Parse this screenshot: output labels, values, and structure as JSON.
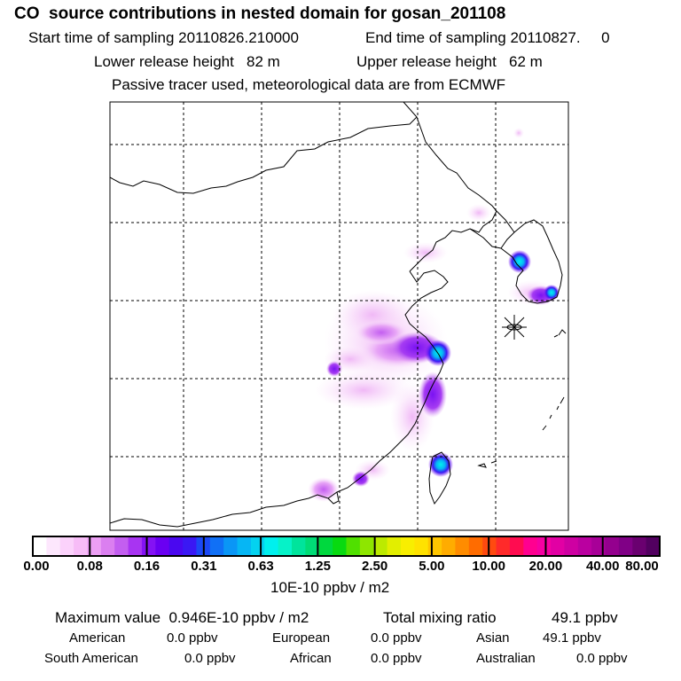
{
  "header": {
    "title": "CO  source contributions in nested domain for gosan_201108",
    "start_label": "Start time of sampling 20110826.210000",
    "end_label": "End time of sampling 20110827.     0",
    "lower_label": "Lower release height   82 m",
    "upper_label": "Upper release height   62 m",
    "tracer_note": "Passive tracer used, meteorological data are from ECMWF"
  },
  "colorbar": {
    "ticks": [
      "0.00",
      "0.08",
      "0.16",
      "0.31",
      "0.63",
      "1.25",
      "2.50",
      "5.00",
      "10.00",
      "20.00",
      "40.00",
      "80.00"
    ],
    "units": "10E-10 ppbv / m2",
    "colors": [
      "#ffffff",
      "#fde7fd",
      "#fbd2fb",
      "#f7bcf7",
      "#ec9ff4",
      "#db7ff0",
      "#c35ef0",
      "#a834f2",
      "#8412f4",
      "#6a00f2",
      "#4a08f0",
      "#3a18f4",
      "#1b48f6",
      "#1070f6",
      "#0a96f6",
      "#06b6f4",
      "#04d2f0",
      "#00f0ee",
      "#06f2c8",
      "#00e49c",
      "#00dc76",
      "#00d83e",
      "#08da10",
      "#50e000",
      "#8ee600",
      "#bcea00",
      "#e2ee00",
      "#f8ee00",
      "#ffe200",
      "#ffc600",
      "#ffac00",
      "#ff8c00",
      "#ff6c00",
      "#ff4a10",
      "#ff2a2a",
      "#ff0c50",
      "#ff0090",
      "#f600a2",
      "#e200a4",
      "#ce00a2",
      "#ba00a0",
      "#a80098",
      "#94008e",
      "#800086",
      "#6a0070",
      "#520060"
    ]
  },
  "stats": {
    "max_label": "Maximum value  0.946E-10 ppbv / m2",
    "total_label": "Total mixing ratio",
    "total_value": "49.1 ppbv",
    "regions": [
      {
        "name": "American",
        "value": "0.0 ppbv"
      },
      {
        "name": "European",
        "value": "0.0 ppbv"
      },
      {
        "name": "Asian",
        "value": "49.1 ppbv"
      },
      {
        "name": "South American",
        "value": "0.0 ppbv"
      },
      {
        "name": "African",
        "value": "0.0 ppbv"
      },
      {
        "name": "Australian",
        "value": "0.0 ppbv"
      }
    ]
  }
}
